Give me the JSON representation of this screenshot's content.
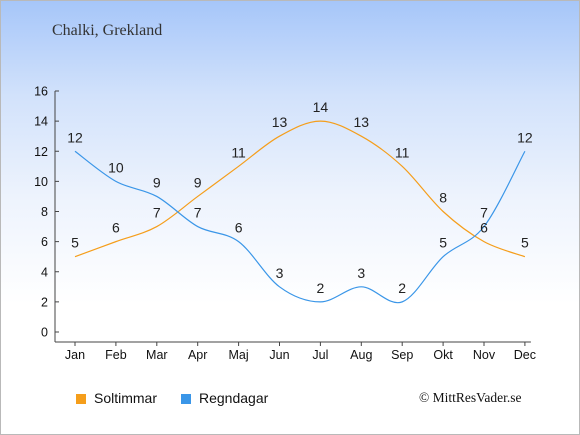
{
  "chart_data": {
    "type": "line",
    "title": "Chalki, Grekland",
    "categories": [
      "Jan",
      "Feb",
      "Mar",
      "Apr",
      "Maj",
      "Jun",
      "Jul",
      "Aug",
      "Sep",
      "Okt",
      "Nov",
      "Dec"
    ],
    "series": [
      {
        "name": "Soltimmar",
        "color": "#f59e1b",
        "values": [
          5,
          6,
          7,
          9,
          11,
          13,
          14,
          13,
          11,
          8,
          6,
          5
        ],
        "labels": [
          "5",
          "6",
          "7",
          "9",
          "11",
          "13",
          "14",
          "13",
          "11",
          "8",
          "6",
          "5"
        ]
      },
      {
        "name": "Regndagar",
        "color": "#3a96e8",
        "values": [
          12,
          10,
          9,
          7,
          6,
          3,
          2,
          3,
          2,
          5,
          7,
          12
        ],
        "labels": [
          "12",
          "10",
          "9",
          "7",
          "6",
          "3",
          "2",
          "3",
          "2",
          "5",
          "7",
          "12"
        ]
      }
    ],
    "y_ticks": [
      "0",
      "2",
      "4",
      "6",
      "8",
      "10",
      "12",
      "14",
      "16"
    ],
    "ylim": [
      0,
      16
    ],
    "xlabel": "",
    "ylabel": "",
    "grid": false,
    "legend_position": "bottom-left"
  },
  "copyright": "© MittResVader.se"
}
